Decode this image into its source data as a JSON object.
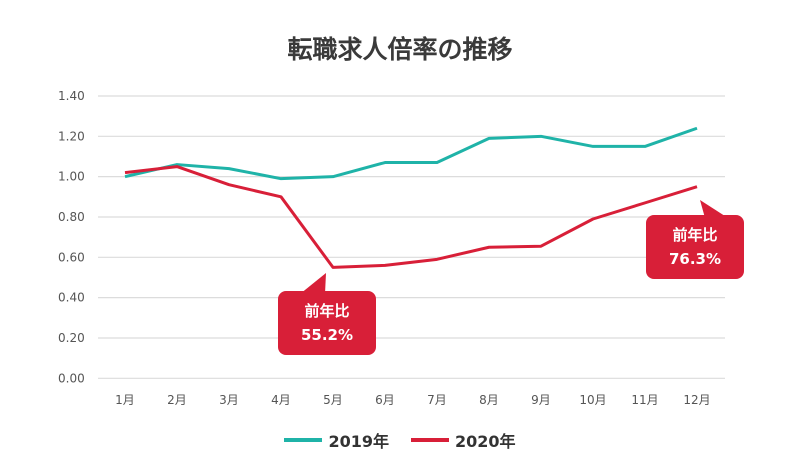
{
  "chart_data": {
    "type": "line",
    "title": "転職求人倍率の推移",
    "categories": [
      "1月",
      "2月",
      "3月",
      "4月",
      "5月",
      "6月",
      "7月",
      "8月",
      "9月",
      "10月",
      "11月",
      "12月"
    ],
    "ylim": [
      0,
      1.4
    ],
    "yticks": [
      "0.00",
      "0.20",
      "0.40",
      "0.60",
      "0.80",
      "1.00",
      "1.20",
      "1.40"
    ],
    "grid": true,
    "legend_placement": "bottom",
    "series": [
      {
        "name": "2019年",
        "color": "#1fb3a8",
        "values": [
          1.0,
          1.06,
          1.04,
          0.99,
          1.0,
          1.07,
          1.07,
          1.19,
          1.2,
          1.15,
          1.15,
          1.24
        ]
      },
      {
        "name": "2020年",
        "color": "#d81f38",
        "values": [
          1.02,
          1.05,
          0.96,
          0.9,
          0.55,
          0.56,
          0.59,
          0.65,
          0.655,
          0.79,
          0.87,
          0.95
        ]
      }
    ],
    "annotations": [
      {
        "label": "前年比",
        "value": "55.2%",
        "month": "5月"
      },
      {
        "label": "前年比",
        "value": "76.3%",
        "month": "12月"
      }
    ]
  }
}
